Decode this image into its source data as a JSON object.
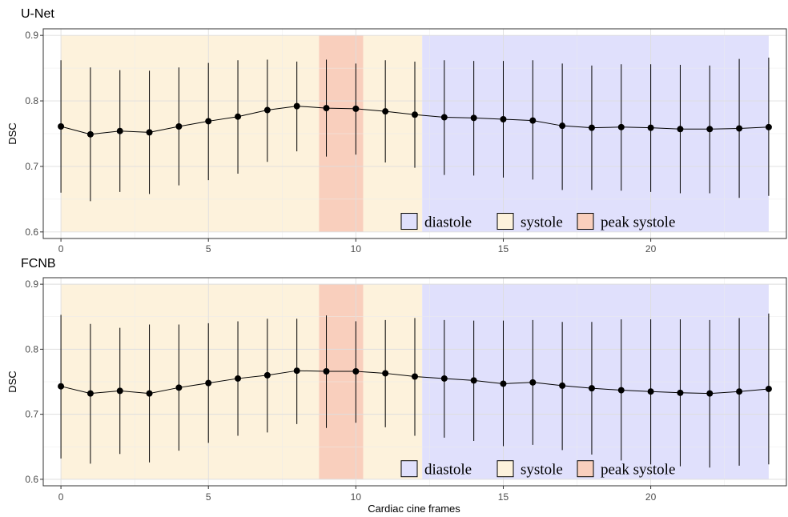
{
  "chart_data": [
    {
      "type": "line",
      "title": "U-Net",
      "xlabel": "",
      "ylabel": "DSC",
      "xlim": [
        -0.6,
        24.6
      ],
      "ylim": [
        0.59,
        0.91
      ],
      "xticks": [
        0,
        5,
        10,
        15,
        20,
        25
      ],
      "yticks": [
        0.6,
        0.7,
        0.8,
        0.9
      ],
      "grid": true,
      "legend_position": "bottom-right",
      "phases": [
        {
          "name": "systole",
          "start": 0,
          "end": 8.75,
          "color": "#fdf2dc"
        },
        {
          "name": "peak systole",
          "start": 8.75,
          "end": 10.25,
          "color": "#f9cfbd"
        },
        {
          "name": "systole",
          "start": 10.25,
          "end": 12.25,
          "color": "#fdf2dc"
        },
        {
          "name": "diastole",
          "start": 12.25,
          "end": 24,
          "color": "#e0e0fc"
        }
      ],
      "band_range": [
        0.6,
        0.9
      ],
      "x": [
        0,
        1,
        2,
        3,
        4,
        5,
        6,
        7,
        8,
        9,
        10,
        11,
        12,
        13,
        14,
        15,
        16,
        17,
        18,
        19,
        20,
        21,
        22,
        23,
        24
      ],
      "y": [
        0.761,
        0.749,
        0.754,
        0.752,
        0.761,
        0.769,
        0.776,
        0.786,
        0.792,
        0.789,
        0.788,
        0.784,
        0.779,
        0.775,
        0.774,
        0.772,
        0.77,
        0.762,
        0.759,
        0.76,
        0.759,
        0.757,
        0.757,
        0.758,
        0.76
      ],
      "y_upper": [
        0.862,
        0.851,
        0.847,
        0.846,
        0.851,
        0.858,
        0.862,
        0.863,
        0.86,
        0.863,
        0.857,
        0.862,
        0.86,
        0.862,
        0.861,
        0.861,
        0.862,
        0.857,
        0.854,
        0.856,
        0.856,
        0.855,
        0.854,
        0.864,
        0.866
      ],
      "y_lower": [
        0.66,
        0.647,
        0.661,
        0.658,
        0.671,
        0.679,
        0.689,
        0.707,
        0.723,
        0.715,
        0.718,
        0.706,
        0.698,
        0.687,
        0.686,
        0.683,
        0.68,
        0.664,
        0.664,
        0.663,
        0.661,
        0.659,
        0.659,
        0.652,
        0.655
      ],
      "legend": [
        {
          "label": "diastole",
          "color": "#e0e0fc"
        },
        {
          "label": "systole",
          "color": "#fdf2dc"
        },
        {
          "label": "peak systole",
          "color": "#f9cfbd"
        }
      ]
    },
    {
      "type": "line",
      "title": "FCNB",
      "xlabel": "Cardiac cine frames",
      "ylabel": "DSC",
      "xlim": [
        -0.6,
        24.6
      ],
      "ylim": [
        0.59,
        0.91
      ],
      "xticks": [
        0,
        5,
        10,
        15,
        20,
        25
      ],
      "yticks": [
        0.6,
        0.7,
        0.8,
        0.9
      ],
      "grid": true,
      "legend_position": "bottom-right",
      "phases": [
        {
          "name": "systole",
          "start": 0,
          "end": 8.75,
          "color": "#fdf2dc"
        },
        {
          "name": "peak systole",
          "start": 8.75,
          "end": 10.25,
          "color": "#f9cfbd"
        },
        {
          "name": "systole",
          "start": 10.25,
          "end": 12.25,
          "color": "#fdf2dc"
        },
        {
          "name": "diastole",
          "start": 12.25,
          "end": 24,
          "color": "#e0e0fc"
        }
      ],
      "band_range": [
        0.6,
        0.9
      ],
      "x": [
        0,
        1,
        2,
        3,
        4,
        5,
        6,
        7,
        8,
        9,
        10,
        11,
        12,
        13,
        14,
        15,
        16,
        17,
        18,
        19,
        20,
        21,
        22,
        23,
        24
      ],
      "y": [
        0.743,
        0.732,
        0.736,
        0.732,
        0.741,
        0.748,
        0.755,
        0.76,
        0.767,
        0.766,
        0.766,
        0.763,
        0.758,
        0.755,
        0.752,
        0.747,
        0.749,
        0.744,
        0.74,
        0.737,
        0.735,
        0.733,
        0.732,
        0.735,
        0.739
      ],
      "y_upper": [
        0.853,
        0.839,
        0.833,
        0.838,
        0.838,
        0.84,
        0.843,
        0.847,
        0.847,
        0.852,
        0.843,
        0.845,
        0.848,
        0.845,
        0.844,
        0.844,
        0.845,
        0.842,
        0.842,
        0.846,
        0.846,
        0.846,
        0.845,
        0.848,
        0.855
      ],
      "y_lower": [
        0.632,
        0.624,
        0.639,
        0.626,
        0.644,
        0.656,
        0.667,
        0.672,
        0.685,
        0.679,
        0.687,
        0.68,
        0.667,
        0.664,
        0.659,
        0.651,
        0.653,
        0.645,
        0.638,
        0.629,
        0.623,
        0.62,
        0.618,
        0.621,
        0.623
      ],
      "legend": [
        {
          "label": "diastole",
          "color": "#e0e0fc"
        },
        {
          "label": "systole",
          "color": "#fdf2dc"
        },
        {
          "label": "peak systole",
          "color": "#f9cfbd"
        }
      ]
    }
  ]
}
